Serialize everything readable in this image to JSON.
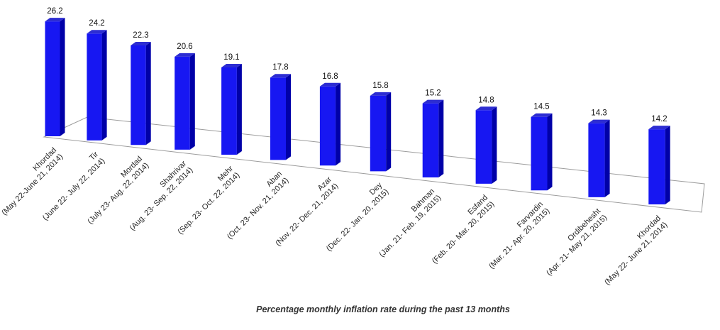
{
  "chart_data": {
    "type": "bar",
    "projection": "3d-perspective",
    "title": "Percentage monthly inflation rate during the past 13 months",
    "categories": [
      "Khordad",
      "Tir",
      "Mordad",
      "Shahrivar",
      "Mehr",
      "Aban",
      "Azar",
      "Dey",
      "Bahman",
      "Esfand",
      "Farvardin",
      "Ordibehesht",
      "Khordad"
    ],
    "category_sublabels": [
      "(May 22-June 21, 2014)",
      "(June 22- July 22, 2014)",
      "(July 23- Aug. 22, 2014)",
      "(Aug. 23- Sep. 22, 2014)",
      "(Sep. 23- Oct. 22, 2014)",
      "(Oct. 23- Nov. 21, 2014)",
      "(Nov. 22- Dec. 21, 2014)",
      "(Dec. 22- Jan. 20, 2015)",
      "(Jan. 21- Feb. 19, 2015)",
      "(Feb. 20- Mar. 20, 2015)",
      "(Mar. 21- Apr. 20, 2015)",
      "(Apr. 21- May 21, 2015)",
      "(May 22- June 21, 2014)"
    ],
    "values": [
      26.2,
      24.2,
      22.3,
      20.6,
      19.1,
      17.8,
      16.8,
      15.8,
      15.2,
      14.8,
      14.5,
      14.3,
      14.2
    ],
    "value_labels_shown": true,
    "axes_hidden": true,
    "legend": "none",
    "grid": "none",
    "colors": {
      "bar_front": "#1717f2",
      "bar_side": "#0000a8",
      "bar_top": "#2d2dd2",
      "floor_fill": "#ffffff",
      "floor_stroke": "#9c9c9c",
      "value_text": "#111111",
      "category_text": "#262626",
      "title_text": "#333333",
      "background": "#ffffff"
    }
  }
}
